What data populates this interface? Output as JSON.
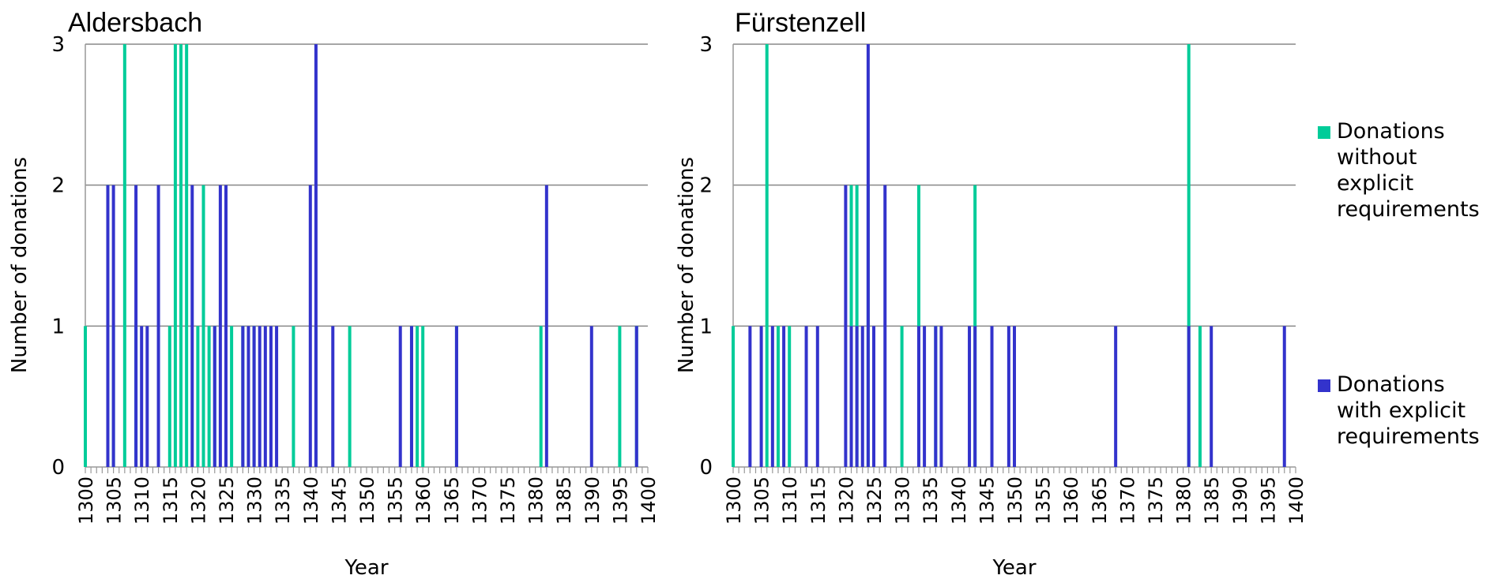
{
  "chart_data": [
    {
      "type": "bar",
      "title": "Aldersbach",
      "xlabel": "Year",
      "ylabel": "Number of donations",
      "x_range": [
        1300,
        1400
      ],
      "ylim": [
        0,
        3
      ],
      "yticks": [
        0,
        1,
        2,
        3
      ],
      "xticks": [
        1300,
        1305,
        1310,
        1315,
        1320,
        1325,
        1330,
        1335,
        1340,
        1345,
        1350,
        1355,
        1360,
        1365,
        1370,
        1375,
        1380,
        1385,
        1390,
        1395,
        1400
      ],
      "grid": true,
      "series": [
        {
          "name": "Donations without explicit requirements",
          "color": "#00cc99",
          "x": [
            1300,
            1304,
            1305,
            1307,
            1309,
            1315,
            1316,
            1317,
            1318,
            1320,
            1321,
            1322,
            1323,
            1325,
            1326,
            1328,
            1330,
            1337,
            1341,
            1347,
            1358,
            1359,
            1360,
            1366,
            1381,
            1395,
            1398
          ],
          "values": [
            1,
            2,
            1,
            3,
            1,
            1,
            3,
            3,
            3,
            1,
            2,
            1,
            1,
            1,
            1,
            1,
            1,
            1,
            1,
            1,
            1,
            1,
            1,
            1,
            1,
            1,
            1
          ]
        },
        {
          "name": "Donations with explicit requirements",
          "color": "#3333cc",
          "x": [
            1304,
            1305,
            1309,
            1310,
            1311,
            1313,
            1319,
            1323,
            1324,
            1325,
            1328,
            1329,
            1330,
            1331,
            1332,
            1333,
            1334,
            1340,
            1341,
            1344,
            1356,
            1358,
            1366,
            1382,
            1390,
            1398
          ],
          "values": [
            2,
            2,
            2,
            1,
            1,
            2,
            2,
            1,
            2,
            2,
            1,
            1,
            1,
            1,
            1,
            1,
            1,
            2,
            3,
            1,
            1,
            1,
            1,
            2,
            1,
            1
          ]
        }
      ]
    },
    {
      "type": "bar",
      "title": "Fürstenzell",
      "xlabel": "Year",
      "ylabel": "Number of donations",
      "x_range": [
        1300,
        1400
      ],
      "ylim": [
        0,
        3
      ],
      "yticks": [
        0,
        1,
        2,
        3
      ],
      "xticks": [
        1300,
        1305,
        1310,
        1315,
        1320,
        1325,
        1330,
        1335,
        1340,
        1345,
        1350,
        1355,
        1360,
        1365,
        1370,
        1375,
        1380,
        1385,
        1390,
        1395,
        1400
      ],
      "grid": true,
      "series": [
        {
          "name": "Donations without explicit requirements",
          "color": "#00cc99",
          "x": [
            1300,
            1306,
            1308,
            1310,
            1321,
            1322,
            1324,
            1330,
            1333,
            1336,
            1343,
            1381,
            1383
          ],
          "values": [
            1,
            3,
            1,
            1,
            2,
            2,
            2,
            1,
            2,
            1,
            2,
            3,
            1
          ]
        },
        {
          "name": "Donations with explicit requirements",
          "color": "#3333cc",
          "x": [
            1303,
            1305,
            1307,
            1309,
            1313,
            1315,
            1320,
            1321,
            1322,
            1323,
            1324,
            1325,
            1327,
            1333,
            1334,
            1336,
            1337,
            1342,
            1343,
            1346,
            1349,
            1350,
            1368,
            1381,
            1385,
            1398
          ],
          "values": [
            1,
            1,
            1,
            1,
            1,
            1,
            2,
            1,
            1,
            1,
            3,
            1,
            2,
            1,
            1,
            1,
            1,
            1,
            1,
            1,
            1,
            1,
            1,
            1,
            1,
            1
          ]
        }
      ]
    }
  ],
  "legend": {
    "placement": "right",
    "items": [
      {
        "label": "Donations without explicit requirements",
        "lines": [
          "Donations",
          "without",
          "explicit",
          "requirements"
        ],
        "color": "#00cc99"
      },
      {
        "label": "Donations with explicit requirements",
        "lines": [
          "Donations",
          "with explicit",
          "requirements"
        ],
        "color": "#3333cc"
      }
    ]
  }
}
